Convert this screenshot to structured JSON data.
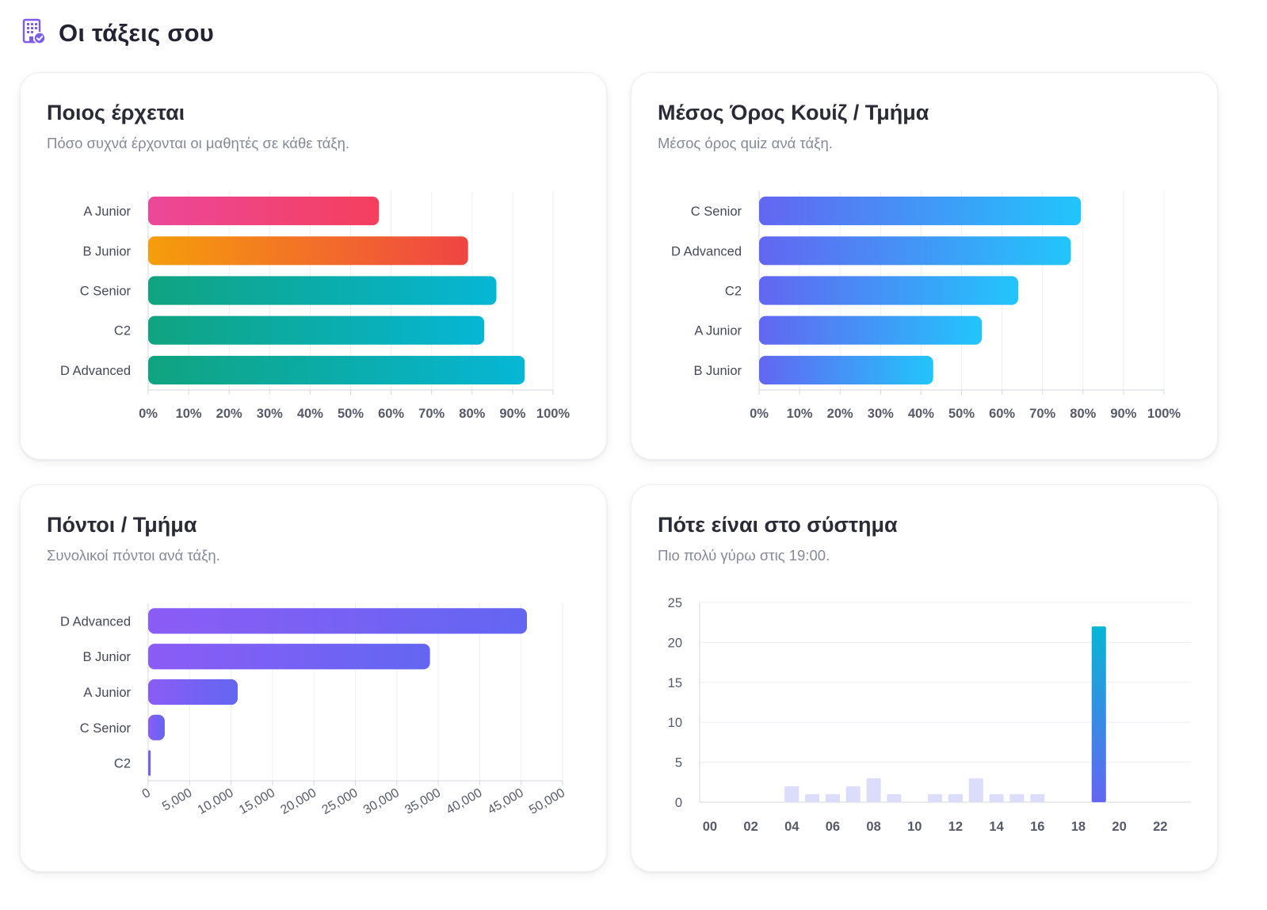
{
  "page": {
    "title": "Οι τάξεις σου",
    "icon": "building-check-icon"
  },
  "colors": {
    "pink": [
      "#ec4899",
      "#f43f5e"
    ],
    "orange": [
      "#f59e0b",
      "#ef4444"
    ],
    "teal": [
      "#10a37f",
      "#06b6d4"
    ],
    "blue": [
      "#6366f1",
      "#22c5fb"
    ],
    "purple": [
      "#8b5cf6",
      "#6366f1"
    ],
    "activity_faint": "#dcdcfb",
    "activity_peak": [
      "#6366f1",
      "#06b6d4"
    ]
  },
  "cards": {
    "attendance": {
      "title": "Ποιος έρχεται",
      "subtitle": "Πόσο συχνά έρχονται οι μαθητές σε κάθε τάξη."
    },
    "quiz": {
      "title": "Μέσος Όρος Κουίζ / Τμήμα",
      "subtitle": "Μέσος όρος quiz ανά τάξη."
    },
    "points": {
      "title": "Πόντοι / Τμήμα",
      "subtitle": "Συνολικοί πόντοι ανά τάξη."
    },
    "activity": {
      "title": "Πότε είναι στο σύστημα",
      "subtitle": "Πιο πολύ γύρω στις 19:00."
    }
  },
  "chart_data": [
    {
      "id": "attendance",
      "type": "bar",
      "orientation": "horizontal",
      "categories": [
        "A Junior",
        "B Junior",
        "C Senior",
        "C2",
        "D Advanced"
      ],
      "values": [
        57,
        79,
        86,
        83,
        93
      ],
      "bar_colors": [
        "pink",
        "orange",
        "teal",
        "teal",
        "teal"
      ],
      "xlim": [
        0,
        100
      ],
      "x_ticks": [
        "0%",
        "10%",
        "20%",
        "30%",
        "40%",
        "50%",
        "60%",
        "70%",
        "80%",
        "90%",
        "100%"
      ],
      "grid": true
    },
    {
      "id": "quiz",
      "type": "bar",
      "orientation": "horizontal",
      "categories": [
        "C Senior",
        "D Advanced",
        "C2",
        "A Junior",
        "B Junior"
      ],
      "values": [
        79.5,
        77,
        64,
        55,
        43
      ],
      "bar_colors": [
        "blue",
        "blue",
        "blue",
        "blue",
        "blue"
      ],
      "xlim": [
        0,
        100
      ],
      "x_ticks": [
        "0%",
        "10%",
        "20%",
        "30%",
        "40%",
        "50%",
        "60%",
        "70%",
        "80%",
        "90%",
        "100%"
      ],
      "grid": true
    },
    {
      "id": "points",
      "type": "bar",
      "orientation": "horizontal",
      "categories": [
        "D Advanced",
        "B Junior",
        "A Junior",
        "C Senior",
        "C2"
      ],
      "values": [
        45700,
        34000,
        10800,
        2000,
        300
      ],
      "bar_colors": [
        "purple",
        "purple",
        "purple",
        "purple",
        "purple"
      ],
      "xlim": [
        0,
        50000
      ],
      "x_ticks": [
        "0",
        "5,000",
        "10,000",
        "15,000",
        "20,000",
        "25,000",
        "30,000",
        "35,000",
        "40,000",
        "45,000",
        "50,000"
      ],
      "grid": true
    },
    {
      "id": "activity",
      "type": "bar",
      "orientation": "vertical",
      "categories": [
        "00",
        "01",
        "02",
        "03",
        "04",
        "05",
        "06",
        "07",
        "08",
        "09",
        "10",
        "11",
        "12",
        "13",
        "14",
        "15",
        "16",
        "17",
        "18",
        "19",
        "20",
        "21",
        "22",
        "23"
      ],
      "x_tick_labels": [
        "00",
        "02",
        "04",
        "06",
        "08",
        "10",
        "12",
        "14",
        "16",
        "18",
        "20",
        "22"
      ],
      "values": [
        0,
        0,
        0,
        0,
        2,
        1,
        1,
        2,
        3,
        1,
        0,
        1,
        1,
        3,
        1,
        1,
        1,
        0,
        0,
        22,
        0,
        0,
        0,
        0
      ],
      "peak_category": "19",
      "ylim": [
        0,
        25
      ],
      "y_ticks": [
        "0",
        "5",
        "10",
        "15",
        "20",
        "25"
      ],
      "grid": true
    }
  ]
}
